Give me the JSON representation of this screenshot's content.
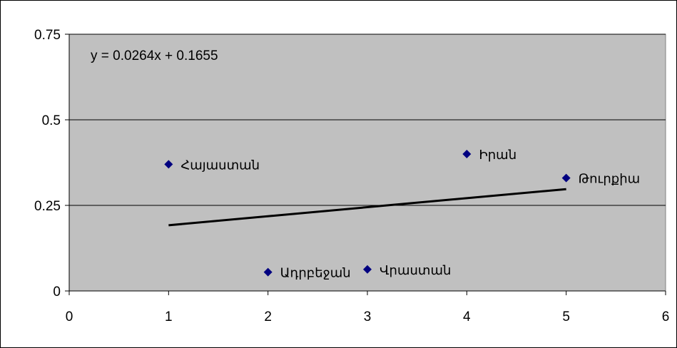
{
  "chart_data": {
    "type": "scatter",
    "title": "",
    "xlabel": "",
    "ylabel": "",
    "xlim": [
      0,
      6
    ],
    "ylim": [
      0,
      0.75
    ],
    "x_ticks": [
      "0",
      "1",
      "2",
      "3",
      "4",
      "5",
      "6"
    ],
    "y_ticks": [
      "0",
      "0.25",
      "0.5",
      "0.75"
    ],
    "x_tick_values": [
      0,
      1,
      2,
      3,
      4,
      5,
      6
    ],
    "y_tick_values": [
      0,
      0.25,
      0.5,
      0.75
    ],
    "grid": "horizontal",
    "legend": "none",
    "colors": {
      "plot_background": "#c0c0c0",
      "marker": "#000080",
      "trendline": "#000000",
      "gridline": "#000000"
    },
    "points": [
      {
        "x": 1,
        "y": 0.37,
        "label": "Հայաստան"
      },
      {
        "x": 2,
        "y": 0.055,
        "label": "Ադրբեջան"
      },
      {
        "x": 3,
        "y": 0.063,
        "label": "Վրաստան"
      },
      {
        "x": 4,
        "y": 0.4,
        "label": "Իրան"
      },
      {
        "x": 5,
        "y": 0.33,
        "label": "Թուրքիա"
      }
    ],
    "trendline": {
      "slope": 0.0264,
      "intercept": 0.1655,
      "x_range": [
        1,
        5
      ],
      "equation": "y = 0.0264x + 0.1655"
    }
  }
}
